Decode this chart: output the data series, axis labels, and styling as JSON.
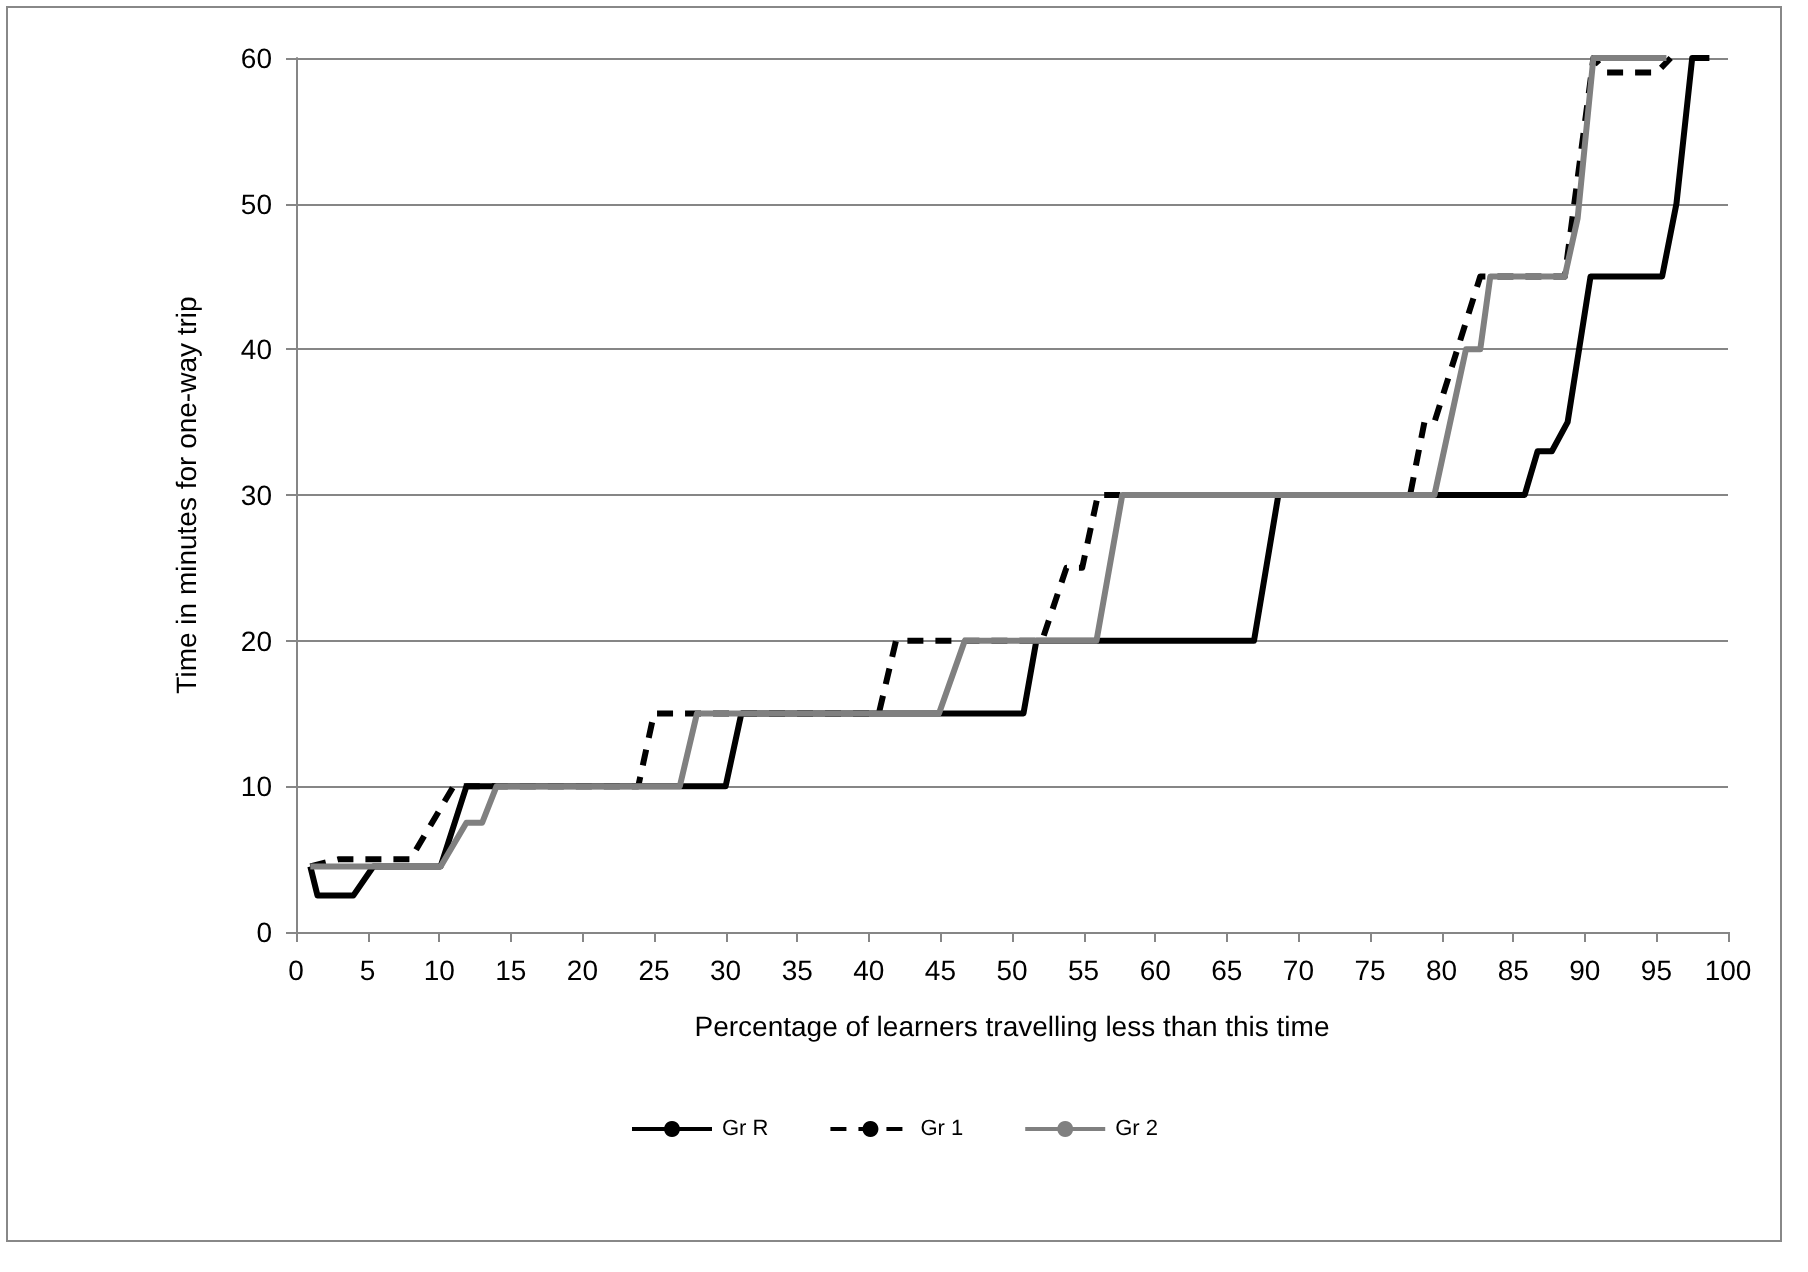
{
  "chart_data": {
    "type": "line",
    "xlabel": "Percentage of learners travelling less than this time",
    "ylabel": "Time in minutes for one-way trip",
    "xlim": [
      0,
      100
    ],
    "xticks": [
      0,
      5,
      10,
      15,
      20,
      25,
      30,
      35,
      40,
      45,
      50,
      55,
      60,
      65,
      70,
      75,
      80,
      85,
      90,
      95,
      100
    ],
    "ylim": [
      0,
      60
    ],
    "yticks": [
      0,
      10,
      20,
      30,
      40,
      50,
      60
    ],
    "grid": "y",
    "legend": "bottom",
    "marker": "none",
    "series": [
      {
        "name": "Gr R",
        "color": "#000000",
        "line_style": "solid",
        "x": [
          1,
          1.5,
          4,
          5.4,
          10.1,
          11.9,
          30,
          31.1,
          50.8,
          51.7,
          66.9,
          68.6,
          85.8,
          86.7,
          87.7,
          88.8,
          90.4,
          95.4,
          96.4,
          97.5,
          98.7
        ],
        "values": [
          4.5,
          2.5,
          2.5,
          4.5,
          4.5,
          10,
          10,
          15,
          15,
          20,
          20,
          30,
          30,
          33,
          33,
          35,
          45,
          45,
          50,
          60,
          60
        ]
      },
      {
        "name": "Gr 1",
        "color": "#000000",
        "line_style": "dashed",
        "x": [
          1,
          3,
          8,
          11,
          23.9,
          25,
          40.7,
          41.9,
          52.1,
          53.8,
          54.9,
          56,
          77.8,
          78.8,
          79.5,
          82.7,
          88.6,
          90.6,
          91.5,
          95,
          96
        ],
        "values": [
          4.5,
          5,
          5,
          10,
          10,
          15,
          15,
          20,
          20,
          25,
          25,
          30,
          30,
          35,
          35,
          45,
          45,
          60,
          59,
          59,
          60
        ]
      },
      {
        "name": "Gr 2",
        "color": "#808080",
        "line_style": "solid",
        "x": [
          1,
          10.1,
          11.9,
          13,
          14,
          26.8,
          28,
          44.9,
          46.7,
          55.9,
          57.7,
          79.5,
          81.7,
          82.7,
          83.4,
          88.6,
          89.5,
          90.6,
          95.7
        ],
        "values": [
          4.5,
          4.5,
          7.5,
          7.5,
          10,
          10,
          15,
          15,
          20,
          20,
          30,
          30,
          40,
          40,
          45,
          45,
          49,
          60,
          60
        ]
      }
    ]
  }
}
